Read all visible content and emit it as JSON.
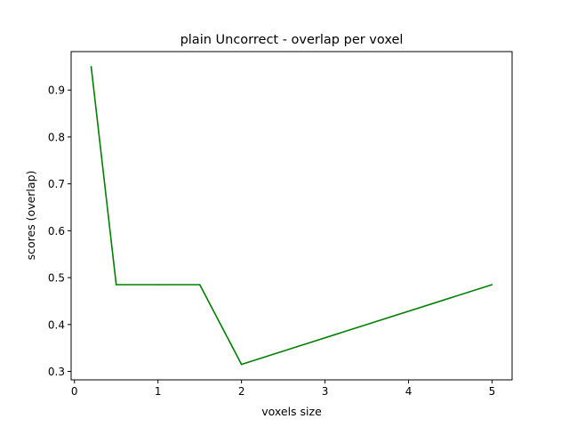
{
  "chart_data": {
    "type": "line",
    "title": "plain Uncorrect - overlap per voxel",
    "xlabel": "voxels size",
    "ylabel": "scores (overlap)",
    "xlim": [
      -0.04,
      5.24
    ],
    "ylim": [
      0.282,
      0.982
    ],
    "xticks": [
      0,
      1,
      2,
      3,
      4,
      5
    ],
    "yticks": [
      0.3,
      0.4,
      0.5,
      0.6,
      0.7,
      0.8,
      0.9
    ],
    "xtick_labels": [
      "0",
      "1",
      "2",
      "3",
      "4",
      "5"
    ],
    "ytick_labels": [
      "0.3",
      "0.4",
      "0.5",
      "0.6",
      "0.7",
      "0.8",
      "0.9"
    ],
    "grid": false,
    "series": [
      {
        "color": "#008000",
        "x": [
          0.2,
          0.5,
          1.0,
          1.5,
          2.0,
          5.0
        ],
        "y": [
          0.95,
          0.485,
          0.485,
          0.485,
          0.315,
          0.485
        ]
      }
    ]
  }
}
